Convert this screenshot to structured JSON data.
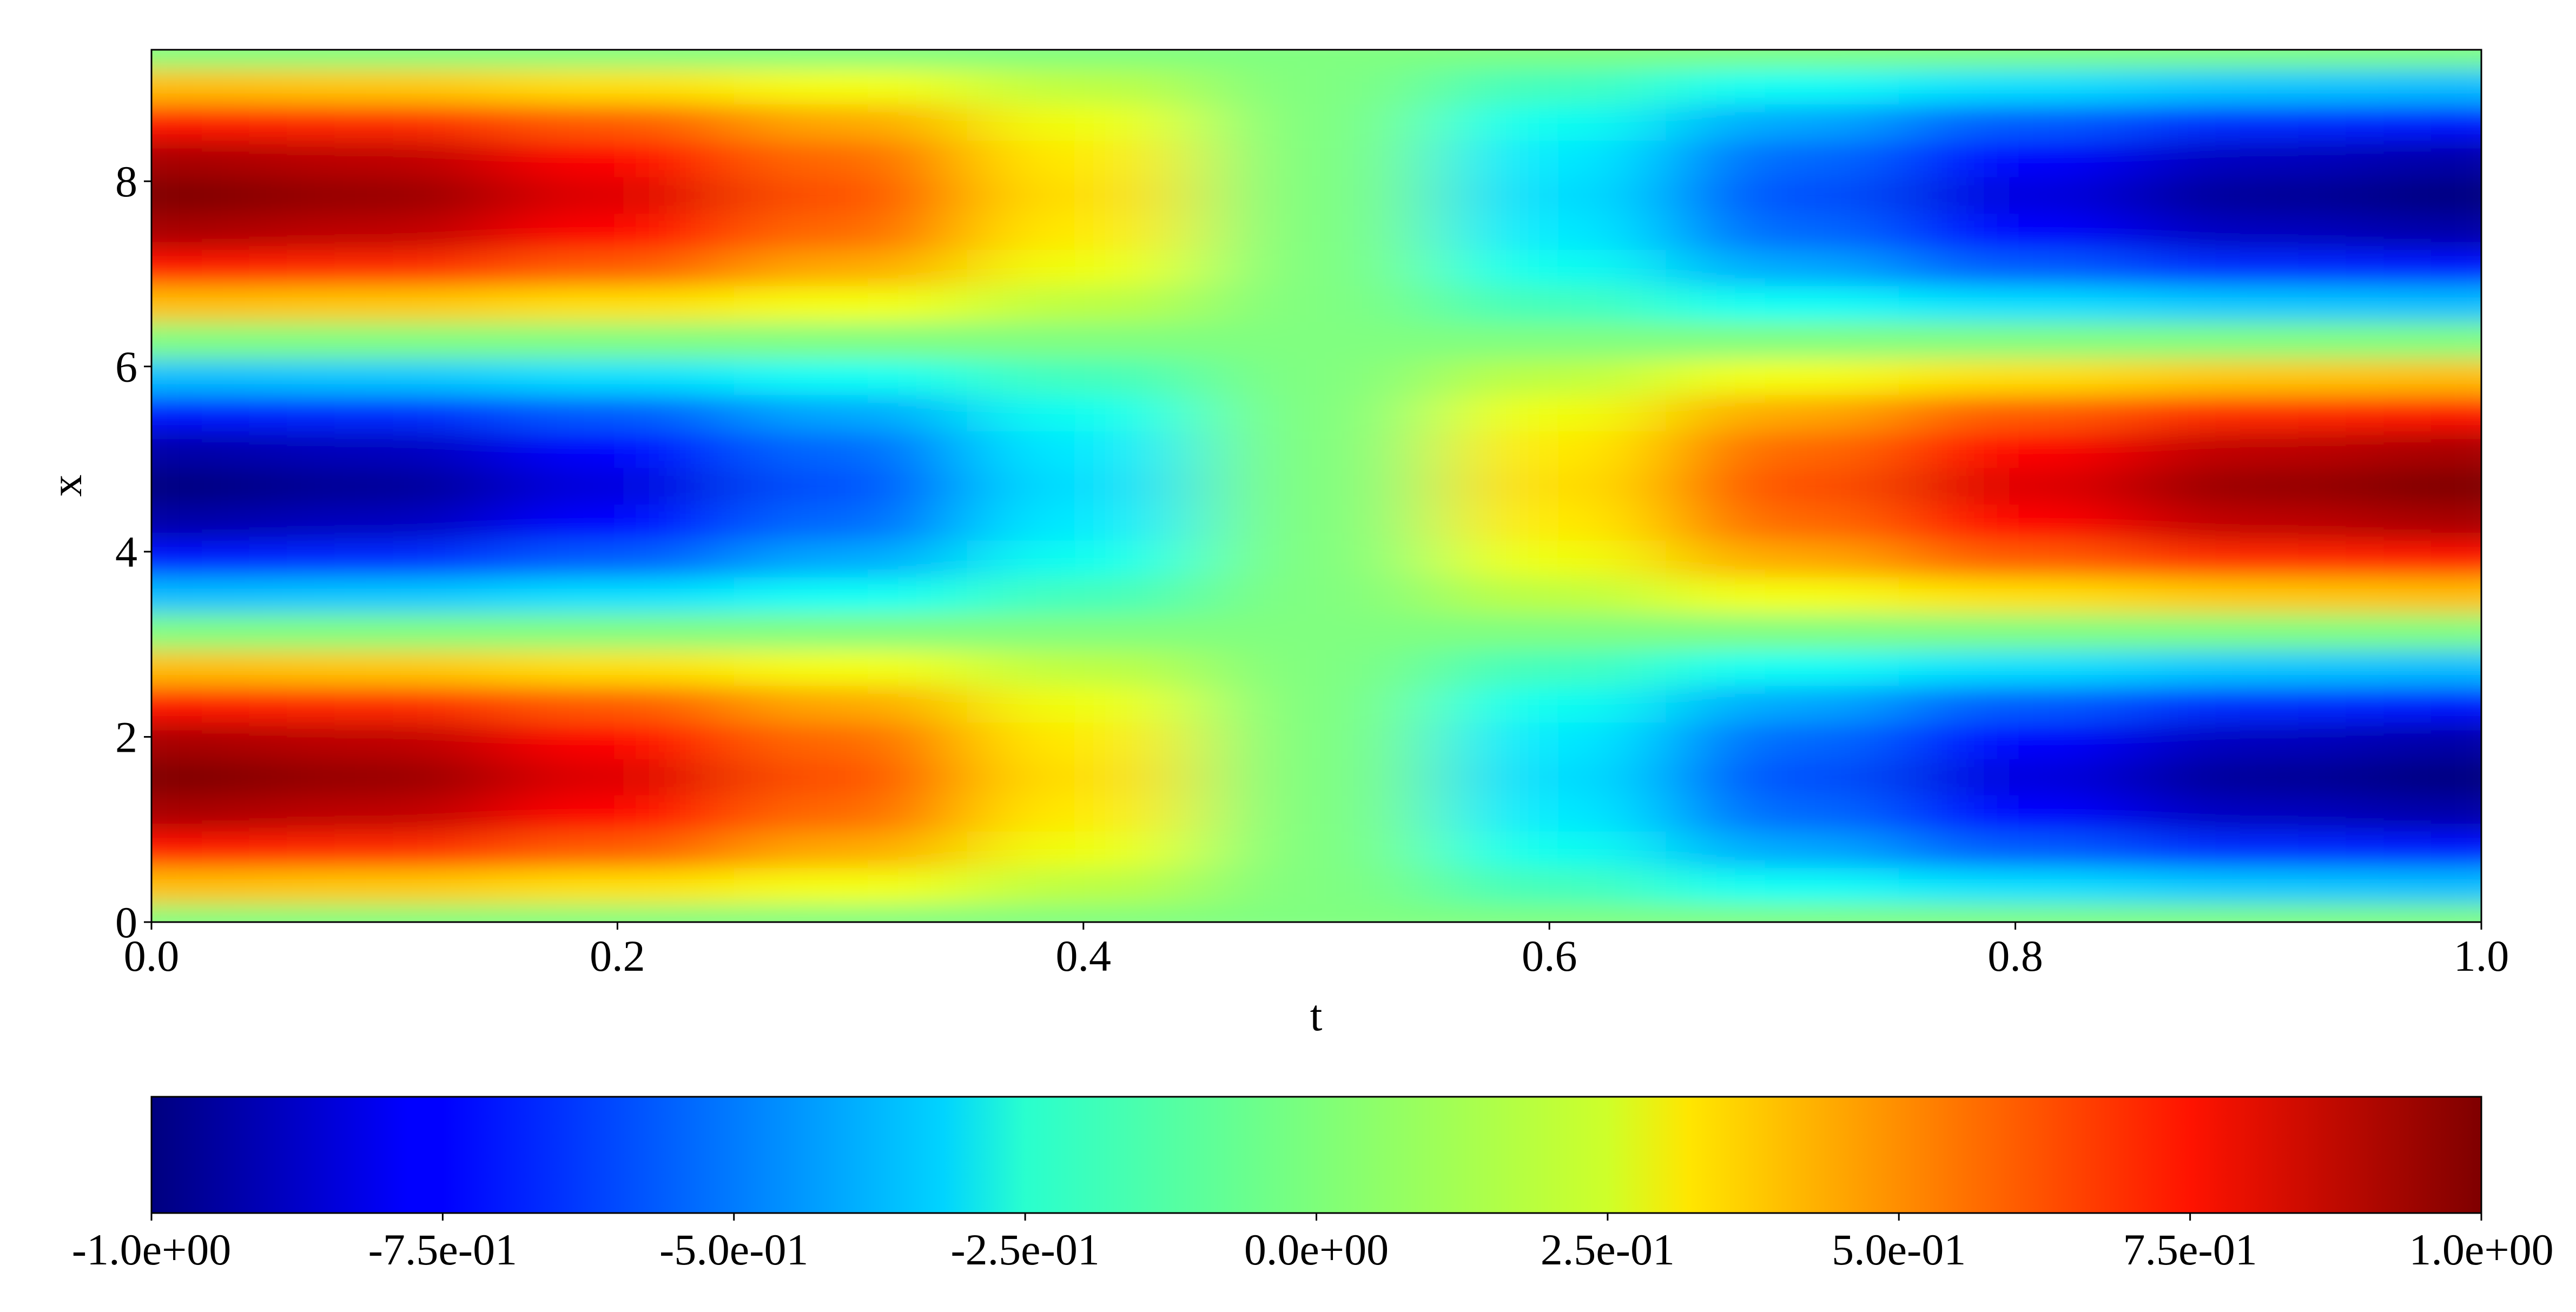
{
  "chart_data": {
    "type": "heatmap",
    "x_label": "t",
    "y_label": "x",
    "x": [
      0,
      0.1,
      0.2,
      0.3,
      0.4,
      0.5,
      0.6,
      0.7,
      0.8,
      0.9,
      1
    ],
    "y": [
      0,
      0.39,
      0.79,
      1.18,
      1.57,
      1.96,
      2.36,
      2.75,
      3.14,
      3.53,
      3.93,
      4.32,
      4.71,
      5.11,
      5.5,
      5.89,
      6.28,
      6.68,
      7.07,
      7.46,
      7.85,
      8.25,
      8.64,
      9.03,
      9.42
    ],
    "z": [
      [
        0,
        0,
        0,
        0,
        0,
        0,
        0,
        0,
        0,
        0,
        0
      ],
      [
        0.38,
        0.36,
        0.31,
        0.23,
        0.12,
        0,
        -0.12,
        -0.23,
        -0.31,
        -0.36,
        -0.38
      ],
      [
        0.71,
        0.67,
        0.57,
        0.42,
        0.22,
        0,
        -0.22,
        -0.42,
        -0.57,
        -0.67,
        -0.71
      ],
      [
        0.92,
        0.88,
        0.75,
        0.54,
        0.29,
        0,
        -0.29,
        -0.54,
        -0.75,
        -0.88,
        -0.92
      ],
      [
        1,
        0.95,
        0.81,
        0.59,
        0.31,
        0,
        -0.31,
        -0.59,
        -0.81,
        -0.95,
        -1
      ],
      [
        0.92,
        0.88,
        0.75,
        0.54,
        0.29,
        0,
        -0.29,
        -0.54,
        -0.75,
        -0.88,
        -0.92
      ],
      [
        0.71,
        0.67,
        0.57,
        0.42,
        0.22,
        0,
        -0.22,
        -0.42,
        -0.57,
        -0.67,
        -0.71
      ],
      [
        0.38,
        0.36,
        0.31,
        0.23,
        0.12,
        0,
        -0.12,
        -0.23,
        -0.31,
        -0.36,
        -0.38
      ],
      [
        0,
        0,
        0,
        0,
        0,
        0,
        0,
        0,
        0,
        0,
        0
      ],
      [
        -0.38,
        -0.36,
        -0.31,
        -0.23,
        -0.12,
        0,
        0.12,
        0.23,
        0.31,
        0.36,
        0.38
      ],
      [
        -0.71,
        -0.67,
        -0.57,
        -0.42,
        -0.22,
        0,
        0.22,
        0.42,
        0.57,
        0.67,
        0.71
      ],
      [
        -0.92,
        -0.88,
        -0.75,
        -0.54,
        -0.29,
        0,
        0.29,
        0.54,
        0.75,
        0.88,
        0.92
      ],
      [
        -1,
        -0.95,
        -0.81,
        -0.59,
        -0.31,
        0,
        0.31,
        0.59,
        0.81,
        0.95,
        1
      ],
      [
        -0.92,
        -0.88,
        -0.75,
        -0.54,
        -0.29,
        0,
        0.29,
        0.54,
        0.75,
        0.88,
        0.92
      ],
      [
        -0.71,
        -0.67,
        -0.57,
        -0.42,
        -0.22,
        0,
        0.22,
        0.42,
        0.57,
        0.67,
        0.71
      ],
      [
        -0.38,
        -0.36,
        -0.31,
        -0.23,
        -0.12,
        0,
        0.12,
        0.23,
        0.31,
        0.36,
        0.38
      ],
      [
        0,
        0,
        0,
        0,
        0,
        0,
        0,
        0,
        0,
        0,
        0
      ],
      [
        0.38,
        0.36,
        0.31,
        0.23,
        0.12,
        0,
        -0.12,
        -0.23,
        -0.31,
        -0.36,
        -0.38
      ],
      [
        0.71,
        0.67,
        0.57,
        0.42,
        0.22,
        0,
        -0.22,
        -0.42,
        -0.57,
        -0.67,
        -0.71
      ],
      [
        0.92,
        0.88,
        0.75,
        0.54,
        0.29,
        0,
        -0.29,
        -0.54,
        -0.75,
        -0.88,
        -0.92
      ],
      [
        1,
        0.95,
        0.81,
        0.59,
        0.31,
        0,
        -0.31,
        -0.59,
        -0.81,
        -0.95,
        -1
      ],
      [
        0.92,
        0.88,
        0.75,
        0.54,
        0.29,
        0,
        -0.29,
        -0.54,
        -0.75,
        -0.88,
        -0.92
      ],
      [
        0.71,
        0.67,
        0.57,
        0.42,
        0.22,
        0,
        -0.22,
        -0.42,
        -0.57,
        -0.67,
        -0.71
      ],
      [
        0.38,
        0.36,
        0.31,
        0.23,
        0.12,
        0,
        -0.12,
        -0.23,
        -0.31,
        -0.36,
        -0.38
      ],
      [
        0,
        0,
        0,
        0,
        0,
        0,
        0,
        0,
        0,
        0,
        0
      ]
    ],
    "colormap": "jet",
    "xlim": [
      0,
      1
    ],
    "xticks": [
      {
        "value": 0,
        "label": "0.0"
      },
      0.2,
      0.4,
      0.6,
      0.8,
      {
        "value": 1,
        "label": "1.0"
      }
    ],
    "ylim": [
      0,
      9.42
    ],
    "yticks": [
      0,
      2,
      4,
      6,
      8
    ],
    "clim": [
      -1,
      1
    ],
    "cticks": [
      {
        "value": -1,
        "label": "-1.0e+00"
      },
      {
        "value": -0.75,
        "label": "-7.5e-01"
      },
      {
        "value": -0.5,
        "label": "-5.0e-01"
      },
      {
        "value": -0.25,
        "label": "-2.5e-01"
      },
      {
        "value": 0,
        "label": "0.0e+00"
      },
      {
        "value": 0.25,
        "label": "2.5e-01"
      },
      {
        "value": 0.5,
        "label": "5.0e-01"
      },
      {
        "value": 0.75,
        "label": "7.5e-01"
      },
      {
        "value": 1,
        "label": "1.0e+00"
      }
    ]
  }
}
